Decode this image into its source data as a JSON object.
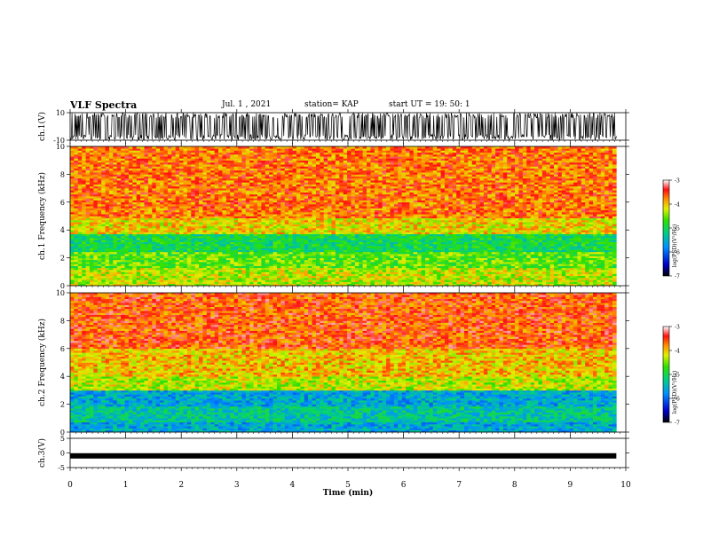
{
  "header": {
    "title": "VLF Spectra",
    "date": "Jul. 1 , 2021",
    "station": "station= KAP",
    "start": "start UT = 19: 50: 1"
  },
  "chart_data": [
    {
      "type": "line",
      "name": "ch1-waveform",
      "ylabel": "ch.1(V)",
      "ylim": [
        -10,
        10
      ],
      "yticks": [
        "10",
        "-10"
      ],
      "x_range_min": [
        0,
        9.83
      ],
      "description_level": "saturated noise waveform spanning full range"
    },
    {
      "type": "heatmap",
      "name": "ch1-spectrogram",
      "ylabel": "ch.1 Frequency (kHz)",
      "ylim": [
        0,
        10
      ],
      "yticks": [
        "0",
        "2",
        "4",
        "6",
        "8",
        "10"
      ],
      "x_range_min": [
        0,
        9.83
      ],
      "colorbar": {
        "label": "log(PSD)(V²/Hz)",
        "range": [
          -7,
          -3
        ],
        "ticks": [
          "-3",
          "-4",
          "-5",
          "-6",
          "-7"
        ]
      },
      "bands": [
        {
          "from_khz": 0,
          "to_khz": 1.2,
          "level": -4.3
        },
        {
          "from_khz": 1.2,
          "to_khz": 2.4,
          "level": -4.6
        },
        {
          "from_khz": 2.4,
          "to_khz": 3.6,
          "level": -5.0
        },
        {
          "from_khz": 3.6,
          "to_khz": 4.8,
          "level": -4.1
        },
        {
          "from_khz": 4.8,
          "to_khz": 10,
          "level": -3.7
        }
      ]
    },
    {
      "type": "heatmap",
      "name": "ch2-spectrogram",
      "ylabel": "ch.2 Frequency (kHz)",
      "ylim": [
        0,
        10
      ],
      "yticks": [
        "0",
        "2",
        "4",
        "6",
        "8",
        "10"
      ],
      "x_range_min": [
        0,
        9.83
      ],
      "colorbar": {
        "label": "log(PSD)(V²/Hz)",
        "range": [
          -7,
          -3
        ],
        "ticks": [
          "-3",
          "-4",
          "-5",
          "-6",
          "-7"
        ]
      },
      "bands": [
        {
          "from_khz": 0,
          "to_khz": 0.6,
          "level": -5.6
        },
        {
          "from_khz": 0.6,
          "to_khz": 1.8,
          "level": -5.3
        },
        {
          "from_khz": 1.8,
          "to_khz": 3.0,
          "level": -5.6
        },
        {
          "from_khz": 3.0,
          "to_khz": 4.0,
          "level": -4.3
        },
        {
          "from_khz": 4.0,
          "to_khz": 6.0,
          "level": -4.0
        },
        {
          "from_khz": 6.0,
          "to_khz": 10,
          "level": -3.6
        }
      ]
    },
    {
      "type": "line",
      "name": "ch3-waveform",
      "ylabel": "ch.3(V)",
      "ylim": [
        -5,
        5
      ],
      "yticks": [
        "5",
        "0",
        "-5"
      ],
      "x_range_min": [
        0,
        9.83
      ],
      "level_v": -1
    }
  ],
  "xaxis": {
    "label": "Time (min)",
    "range": [
      0,
      10
    ],
    "ticks": [
      "0",
      "1",
      "2",
      "3",
      "4",
      "5",
      "6",
      "7",
      "8",
      "9",
      "10"
    ]
  }
}
